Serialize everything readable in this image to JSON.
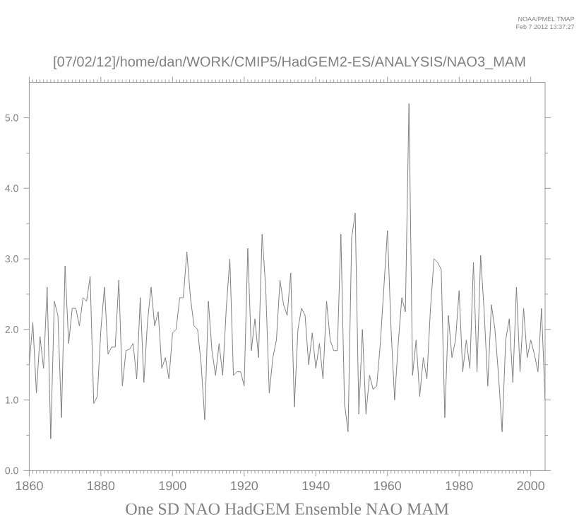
{
  "chart_data": {
    "type": "line",
    "title": "[07/02/12]/home/dan/WORK/CMIP5/HadGEM2-ES/ANALYSIS/NAO3_MAM",
    "xlabel": "One SD NAO HadGEM Ensemble NAO MAM",
    "annotations": [
      "NOAA/PMEL TMAP",
      "Feb  7 2012 13:37:27"
    ],
    "x": [
      1860,
      1861,
      1862,
      1863,
      1864,
      1865,
      1866,
      1867,
      1868,
      1869,
      1870,
      1871,
      1872,
      1873,
      1874,
      1875,
      1876,
      1877,
      1878,
      1879,
      1880,
      1881,
      1882,
      1883,
      1884,
      1885,
      1886,
      1887,
      1888,
      1889,
      1890,
      1891,
      1892,
      1893,
      1894,
      1895,
      1896,
      1897,
      1898,
      1899,
      1900,
      1901,
      1902,
      1903,
      1904,
      1905,
      1906,
      1907,
      1908,
      1909,
      1910,
      1911,
      1912,
      1913,
      1914,
      1915,
      1916,
      1917,
      1918,
      1919,
      1920,
      1921,
      1922,
      1923,
      1924,
      1925,
      1926,
      1927,
      1928,
      1929,
      1930,
      1931,
      1932,
      1933,
      1934,
      1935,
      1936,
      1937,
      1938,
      1939,
      1940,
      1941,
      1942,
      1943,
      1944,
      1945,
      1946,
      1947,
      1948,
      1949,
      1950,
      1951,
      1952,
      1953,
      1954,
      1955,
      1956,
      1957,
      1958,
      1959,
      1960,
      1961,
      1962,
      1963,
      1964,
      1965,
      1966,
      1967,
      1968,
      1969,
      1970,
      1971,
      1972,
      1973,
      1974,
      1975,
      1976,
      1977,
      1978,
      1979,
      1980,
      1981,
      1982,
      1983,
      1984,
      1985,
      1986,
      1987,
      1988,
      1989,
      1990,
      1991,
      1992,
      1993,
      1994,
      1995,
      1996,
      1997,
      1998,
      1999,
      2000,
      2001,
      2002,
      2003,
      2004
    ],
    "values": [
      1.5,
      2.1,
      1.1,
      1.9,
      1.45,
      2.6,
      0.45,
      2.4,
      2.2,
      0.75,
      2.9,
      1.8,
      2.3,
      2.3,
      2.05,
      2.45,
      2.4,
      2.75,
      0.95,
      1.05,
      2.0,
      2.6,
      1.65,
      1.75,
      1.75,
      2.7,
      1.2,
      1.7,
      1.72,
      1.8,
      1.3,
      2.45,
      1.25,
      2.1,
      2.6,
      2.05,
      2.25,
      1.45,
      1.6,
      1.3,
      1.95,
      2.0,
      2.45,
      2.45,
      3.1,
      2.45,
      2.05,
      2.0,
      1.5,
      0.72,
      2.4,
      1.7,
      1.35,
      1.8,
      1.35,
      2.3,
      3.0,
      1.35,
      1.4,
      1.4,
      1.2,
      3.15,
      1.7,
      2.15,
      1.6,
      3.35,
      2.6,
      1.1,
      1.6,
      1.85,
      2.7,
      2.35,
      2.2,
      2.8,
      0.9,
      2.0,
      2.3,
      2.2,
      1.5,
      1.95,
      1.45,
      1.8,
      1.3,
      2.4,
      1.85,
      1.7,
      1.7,
      3.35,
      0.95,
      0.55,
      3.3,
      3.65,
      0.8,
      2.0,
      0.8,
      1.35,
      1.15,
      1.2,
      1.8,
      2.6,
      3.4,
      2.0,
      1.0,
      1.8,
      2.45,
      2.25,
      5.2,
      1.35,
      1.85,
      1.05,
      1.6,
      1.3,
      2.3,
      3.0,
      2.95,
      2.85,
      0.75,
      2.2,
      1.6,
      1.85,
      2.55,
      1.4,
      1.85,
      1.45,
      2.95,
      1.4,
      3.05,
      2.25,
      1.2,
      2.35,
      2.0,
      1.35,
      0.55,
      1.85,
      2.15,
      1.25,
      2.6,
      1.4,
      2.3,
      1.6,
      1.85,
      1.65,
      1.4,
      2.3,
      1.0
    ],
    "color": "#808080",
    "line_style": "solid",
    "xlim": [
      1860,
      2004
    ],
    "ylim": [
      0,
      5.5
    ],
    "xticks": [
      1860,
      1880,
      1900,
      1920,
      1940,
      1960,
      1980,
      2000
    ],
    "yticks": [
      {
        "value": 0,
        "label": "0.0"
      },
      {
        "value": 1,
        "label": "1.0"
      },
      {
        "value": 2,
        "label": "2.0"
      },
      {
        "value": 3,
        "label": "3.0"
      },
      {
        "value": 4,
        "label": "4.0"
      },
      {
        "value": 5,
        "label": "5.0"
      }
    ]
  }
}
